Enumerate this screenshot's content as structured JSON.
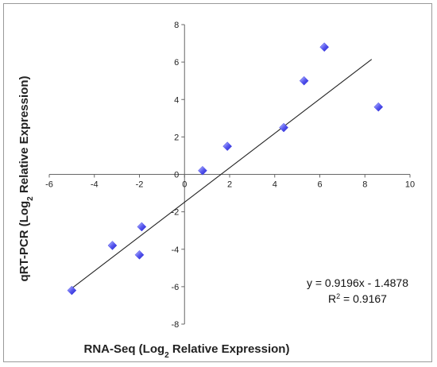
{
  "chart_data": {
    "type": "scatter",
    "xlabel": {
      "main": "RNA-Seq (Log",
      "sub": "2",
      "rest": " Relative Expression)"
    },
    "ylabel": {
      "main": "qRT-PCR (Log",
      "sub": "2",
      "rest": " Relative Expression)"
    },
    "xlim": [
      -6,
      10
    ],
    "ylim": [
      -8,
      8
    ],
    "xticks": [
      "-6",
      "-4",
      "-2",
      "0",
      "2",
      "4",
      "6",
      "8",
      "10"
    ],
    "yticks": [
      "-8",
      "-6",
      "-4",
      "-2",
      "0",
      "2",
      "4",
      "6",
      "8"
    ],
    "points": [
      {
        "x": -5.0,
        "y": -6.2
      },
      {
        "x": -3.2,
        "y": -3.8
      },
      {
        "x": -2.0,
        "y": -4.3
      },
      {
        "x": -1.9,
        "y": -2.8
      },
      {
        "x": 0.8,
        "y": 0.2
      },
      {
        "x": 1.9,
        "y": 1.5
      },
      {
        "x": 4.4,
        "y": 2.5
      },
      {
        "x": 5.3,
        "y": 5.0
      },
      {
        "x": 6.2,
        "y": 6.8
      },
      {
        "x": 8.6,
        "y": 3.6
      }
    ],
    "trendline": {
      "slope": 0.9196,
      "intercept": -1.4878,
      "x_range": [
        -5.0,
        8.3
      ]
    },
    "equation": "y = 0.9196x - 1.4878",
    "r2": {
      "main": "R",
      "sup": "2",
      "rest": " = 0.9167"
    },
    "grid": false,
    "marker_color": "#3a3ae8",
    "marker_highlight": "#9fa8ff",
    "line_color": "#222222"
  }
}
